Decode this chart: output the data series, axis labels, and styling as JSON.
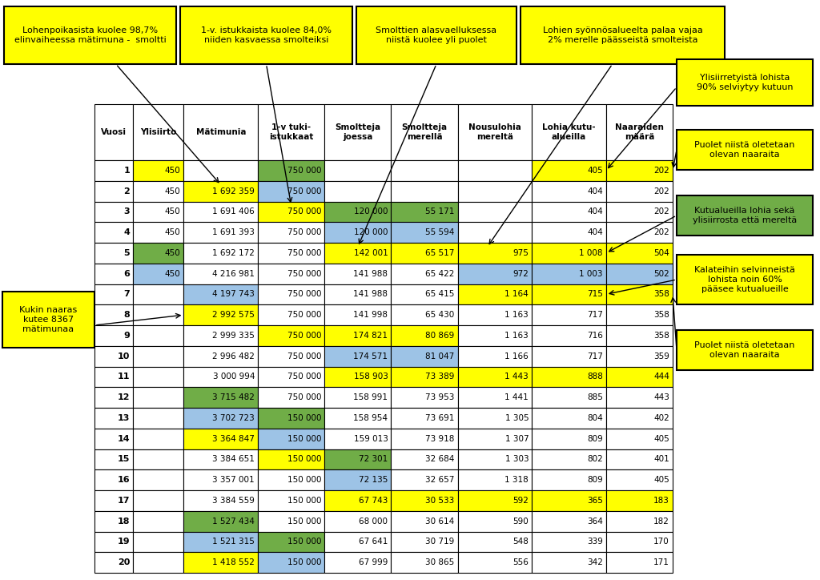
{
  "headers": [
    "Vuosi",
    "Ylisiirto",
    "Mätimunia",
    "1-v tuki-\nistukkaat",
    "Smoltteja\njoessa",
    "Smoltteja\nmerellä",
    "Nousulohia\nmereltä",
    "Lohia kutu-\nalueilla",
    "Naaraiden\nmäärä"
  ],
  "rows": [
    [
      "1",
      "450",
      "",
      "750 000",
      "",
      "",
      "",
      "405",
      "202"
    ],
    [
      "2",
      "450",
      "1 692 359",
      "750 000",
      "",
      "",
      "",
      "404",
      "202"
    ],
    [
      "3",
      "450",
      "1 691 406",
      "750 000",
      "120 000",
      "55 171",
      "",
      "404",
      "202"
    ],
    [
      "4",
      "450",
      "1 691 393",
      "750 000",
      "120 000",
      "55 594",
      "",
      "404",
      "202"
    ],
    [
      "5",
      "450",
      "1 692 172",
      "750 000",
      "142 001",
      "65 517",
      "975",
      "1 008",
      "504"
    ],
    [
      "6",
      "450",
      "4 216 981",
      "750 000",
      "141 988",
      "65 422",
      "972",
      "1 003",
      "502"
    ],
    [
      "7",
      "",
      "4 197 743",
      "750 000",
      "141 988",
      "65 415",
      "1 164",
      "715",
      "358"
    ],
    [
      "8",
      "",
      "2 992 575",
      "750 000",
      "141 998",
      "65 430",
      "1 163",
      "717",
      "358"
    ],
    [
      "9",
      "",
      "2 999 335",
      "750 000",
      "174 821",
      "80 869",
      "1 163",
      "716",
      "358"
    ],
    [
      "10",
      "",
      "2 996 482",
      "750 000",
      "174 571",
      "81 047",
      "1 166",
      "717",
      "359"
    ],
    [
      "11",
      "",
      "3 000 994",
      "750 000",
      "158 903",
      "73 389",
      "1 443",
      "888",
      "444"
    ],
    [
      "12",
      "",
      "3 715 482",
      "750 000",
      "158 991",
      "73 953",
      "1 441",
      "885",
      "443"
    ],
    [
      "13",
      "",
      "3 702 723",
      "150 000",
      "158 954",
      "73 691",
      "1 305",
      "804",
      "402"
    ],
    [
      "14",
      "",
      "3 364 847",
      "150 000",
      "159 013",
      "73 918",
      "1 307",
      "809",
      "405"
    ],
    [
      "15",
      "",
      "3 384 651",
      "150 000",
      "72 301",
      "32 684",
      "1 303",
      "802",
      "401"
    ],
    [
      "16",
      "",
      "3 357 001",
      "150 000",
      "72 135",
      "32 657",
      "1 318",
      "809",
      "405"
    ],
    [
      "17",
      "",
      "3 384 559",
      "150 000",
      "67 743",
      "30 533",
      "592",
      "365",
      "183"
    ],
    [
      "18",
      "",
      "1 527 434",
      "150 000",
      "68 000",
      "30 614",
      "590",
      "364",
      "182"
    ],
    [
      "19",
      "",
      "1 521 315",
      "150 000",
      "67 641",
      "30 719",
      "548",
      "339",
      "170"
    ],
    [
      "20",
      "",
      "1 418 552",
      "150 000",
      "67 999",
      "30 865",
      "556",
      "342",
      "171"
    ]
  ],
  "cell_colors": [
    [
      "white",
      "yellow",
      "white",
      "green",
      "white",
      "white",
      "white",
      "yellow",
      "yellow"
    ],
    [
      "white",
      "white",
      "yellow",
      "blue",
      "white",
      "white",
      "white",
      "white",
      "white"
    ],
    [
      "white",
      "white",
      "white",
      "yellow",
      "green",
      "green",
      "white",
      "white",
      "white"
    ],
    [
      "white",
      "white",
      "white",
      "white",
      "blue",
      "blue",
      "white",
      "white",
      "white"
    ],
    [
      "white",
      "green",
      "white",
      "white",
      "yellow",
      "yellow",
      "yellow",
      "yellow",
      "yellow"
    ],
    [
      "white",
      "blue",
      "white",
      "white",
      "white",
      "white",
      "blue",
      "blue",
      "blue"
    ],
    [
      "white",
      "white",
      "blue",
      "white",
      "white",
      "white",
      "yellow",
      "yellow",
      "yellow"
    ],
    [
      "white",
      "white",
      "yellow",
      "white",
      "white",
      "white",
      "white",
      "white",
      "white"
    ],
    [
      "white",
      "white",
      "white",
      "yellow",
      "yellow",
      "yellow",
      "white",
      "white",
      "white"
    ],
    [
      "white",
      "white",
      "white",
      "white",
      "blue",
      "blue",
      "white",
      "white",
      "white"
    ],
    [
      "white",
      "white",
      "white",
      "white",
      "yellow",
      "yellow",
      "yellow",
      "yellow",
      "yellow"
    ],
    [
      "white",
      "white",
      "green",
      "white",
      "white",
      "white",
      "white",
      "white",
      "white"
    ],
    [
      "white",
      "white",
      "blue",
      "green",
      "white",
      "white",
      "white",
      "white",
      "white"
    ],
    [
      "white",
      "white",
      "yellow",
      "blue",
      "white",
      "white",
      "white",
      "white",
      "white"
    ],
    [
      "white",
      "white",
      "white",
      "yellow",
      "green",
      "white",
      "white",
      "white",
      "white"
    ],
    [
      "white",
      "white",
      "white",
      "white",
      "blue",
      "white",
      "white",
      "white",
      "white"
    ],
    [
      "white",
      "white",
      "white",
      "white",
      "yellow",
      "yellow",
      "yellow",
      "yellow",
      "yellow"
    ],
    [
      "white",
      "white",
      "green",
      "white",
      "white",
      "white",
      "white",
      "white",
      "white"
    ],
    [
      "white",
      "white",
      "blue",
      "green",
      "white",
      "white",
      "white",
      "white",
      "white"
    ],
    [
      "white",
      "white",
      "yellow",
      "blue",
      "white",
      "white",
      "white",
      "white",
      "white"
    ]
  ],
  "color_map": {
    "yellow": "#FFFF00",
    "green": "#70AD47",
    "blue": "#9DC3E6",
    "white": "#FFFFFF"
  },
  "top_boxes": [
    {
      "text": "Lohenpoikasista kuolee 98,7%\nelinvaiheessa mätimuna -  smoltti",
      "color": "yellow"
    },
    {
      "text": "1-v. istukkaista kuolee 84,0%\nniiden kasvaessa smolteiksi",
      "color": "yellow"
    },
    {
      "text": "Smolttien alasvaelluksessa\nniistä kuolee yli puolet",
      "color": "yellow"
    },
    {
      "text": "Lohien syönnösalueelta palaa vajaa\n2% merelle päässeistä smolteista",
      "color": "yellow"
    }
  ],
  "right_boxes": [
    {
      "text": "Ylisiirretyistä lohista\n90% selviytyy kutuun",
      "color": "yellow",
      "arrow_row": 0,
      "arrow_col": 7
    },
    {
      "text": "Puolet niistä oletetaan\nolevan naaraita",
      "color": "yellow",
      "arrow_row": 0,
      "arrow_col": 8
    },
    {
      "text": "Kutualueilla lohia sekä\nylisiirrosta että mereltä",
      "color": "green",
      "arrow_row": 4,
      "arrow_col": 7
    },
    {
      "text": "Kalateihin selvinneistä\nlohista noin 60%\npääsee kutualueille",
      "color": "yellow",
      "arrow_row": 6,
      "arrow_col": 7
    },
    {
      "text": "Puolet niistä oletetaan\nolevan naaraita",
      "color": "yellow",
      "arrow_row": 6,
      "arrow_col": 8
    }
  ],
  "left_box": {
    "text": "Kukin naaras\nkutee 8367\nmätimunaa",
    "color": "yellow",
    "arrow_row": 7,
    "arrow_col": 2
  }
}
